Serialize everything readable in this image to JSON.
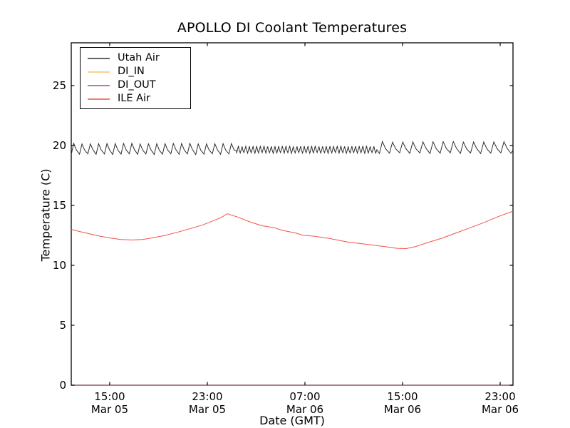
{
  "title": "APOLLO DI Coolant Temperatures",
  "axes": {
    "xlabel": "Date (GMT)",
    "ylabel": "Temperature (C)",
    "y_tick_labels": [
      "0",
      "5",
      "10",
      "15",
      "20",
      "25"
    ],
    "x_tick_labels": [
      {
        "time": "15:00",
        "date": "Mar 05"
      },
      {
        "time": "23:00",
        "date": "Mar 05"
      },
      {
        "time": "07:00",
        "date": "Mar 06"
      },
      {
        "time": "15:00",
        "date": "Mar 06"
      },
      {
        "time": "23:00",
        "date": "Mar 06"
      }
    ]
  },
  "legend": {
    "items": [
      {
        "label": "Utah Air",
        "color": "#2e2e2e"
      },
      {
        "label": "DI_IN",
        "color": "#fdbf6f"
      },
      {
        "label": "DI_OUT",
        "color": "#9b4f9b"
      },
      {
        "label": "ILE Air",
        "color": "#f15349"
      }
    ]
  },
  "chart_data": {
    "type": "line",
    "title": "APOLLO DI Coolant Temperatures",
    "xlabel": "Date (GMT)",
    "ylabel": "Temperature (C)",
    "xlim": [
      -3.15,
      33.05
    ],
    "ylim": [
      0,
      28.57
    ],
    "x_unit": "hours since 15:00 Mar 05 GMT",
    "x_ticks_hours": [
      0,
      8,
      16,
      24,
      32
    ],
    "y_ticks": [
      0,
      5,
      10,
      15,
      20,
      25
    ],
    "grid": false,
    "legend_position": "upper left",
    "series": [
      {
        "name": "Utah Air",
        "color": "#2e2e2e",
        "style": "sawtooth",
        "description": "HVAC cycling around 20 C; slow cycles, then rapid short cycles mid-record, then slow larger cycles",
        "segments": [
          {
            "start": -3.15,
            "end": 10.4,
            "period": 0.68,
            "min": 19.25,
            "max": 20.18,
            "rise_frac": 0.3
          },
          {
            "start": 10.4,
            "end": 21.9,
            "period": 0.3,
            "min": 19.35,
            "max": 19.97,
            "rise_frac": 0.5
          },
          {
            "start": 22.1,
            "end": 33.05,
            "period": 0.83,
            "min": 19.33,
            "max": 20.33,
            "rise_frac": 0.3
          }
        ]
      },
      {
        "name": "DI_IN",
        "color": "#fdbf6f",
        "style": "flat",
        "value": 0
      },
      {
        "name": "DI_OUT",
        "color": "#9b4f9b",
        "style": "flat",
        "value": 0
      },
      {
        "name": "ILE Air",
        "color": "#f15349",
        "style": "points",
        "points": [
          [
            -3.15,
            13.0
          ],
          [
            -2.45,
            12.82
          ],
          [
            -1.69,
            12.64
          ],
          [
            -0.82,
            12.44
          ],
          [
            0.06,
            12.28
          ],
          [
            0.93,
            12.16
          ],
          [
            1.81,
            12.12
          ],
          [
            2.69,
            12.16
          ],
          [
            3.56,
            12.3
          ],
          [
            4.55,
            12.5
          ],
          [
            5.61,
            12.78
          ],
          [
            6.66,
            13.08
          ],
          [
            7.65,
            13.38
          ],
          [
            8.53,
            13.74
          ],
          [
            9.11,
            13.98
          ],
          [
            9.64,
            14.3
          ],
          [
            10.57,
            14.0
          ],
          [
            11.56,
            13.6
          ],
          [
            12.5,
            13.3
          ],
          [
            13.49,
            13.14
          ],
          [
            14.07,
            12.94
          ],
          [
            15.24,
            12.7
          ],
          [
            15.82,
            12.52
          ],
          [
            16.7,
            12.44
          ],
          [
            18.04,
            12.24
          ],
          [
            19.45,
            11.96
          ],
          [
            20.96,
            11.77
          ],
          [
            22.95,
            11.51
          ],
          [
            23.53,
            11.42
          ],
          [
            24.29,
            11.4
          ],
          [
            25.05,
            11.56
          ],
          [
            26.04,
            11.9
          ],
          [
            27.21,
            12.26
          ],
          [
            28.38,
            12.7
          ],
          [
            29.55,
            13.14
          ],
          [
            30.72,
            13.59
          ],
          [
            31.88,
            14.09
          ],
          [
            33.05,
            14.52
          ]
        ]
      }
    ]
  }
}
